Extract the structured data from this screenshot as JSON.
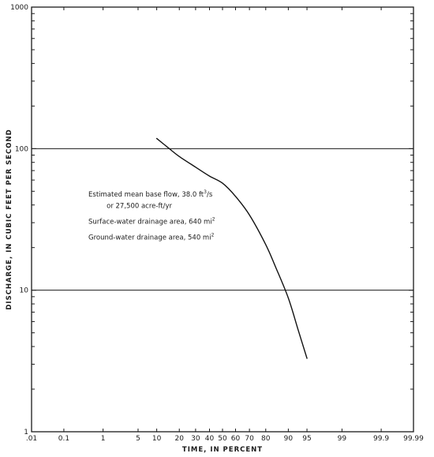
{
  "chart_data": {
    "type": "line",
    "xscale": "normal-probability",
    "yscale": "log",
    "xlabel": "TIME, IN PERCENT",
    "ylabel": "DISCHARGE, IN CUBIC FEET PER SECOND",
    "xlim": [
      0.01,
      99.99
    ],
    "ylim": [
      1,
      1000
    ],
    "x_ticks": [
      0.01,
      0.1,
      1,
      5,
      10,
      20,
      30,
      40,
      50,
      60,
      70,
      80,
      90,
      95,
      99,
      99.9,
      99.99
    ],
    "x_tick_labels": [
      ".01",
      "0.1",
      "1",
      "5",
      "10",
      "20",
      "30",
      "40",
      "50",
      "60",
      "70",
      "80",
      "90",
      "95",
      "99",
      "99.9",
      "99.99"
    ],
    "y_ticks": [
      1,
      10,
      100,
      1000
    ],
    "y_tick_labels": [
      "1",
      "10",
      "100",
      "1000"
    ],
    "grid": "major-horizontal",
    "series": [
      {
        "x": [
          10,
          15,
          20,
          30,
          40,
          50,
          60,
          70,
          80,
          85,
          90,
          93,
          95
        ],
        "y": [
          118,
          100,
          88,
          74,
          64,
          57,
          46,
          34,
          21,
          14.5,
          8.8,
          5.2,
          3.3
        ]
      }
    ],
    "annotations": [
      {
        "text": "Estimated mean base flow, 38.0 ft",
        "sup": "3",
        "tail": "/s",
        "data_x": 0.45,
        "data_y": 46
      },
      {
        "text": "or 27,500 acre-ft/yr",
        "sup": "",
        "tail": "",
        "data_x": 1.2,
        "data_y": 38
      },
      {
        "text": "Surface-water drainage area, 640 mi",
        "sup": "2",
        "tail": "",
        "data_x": 0.45,
        "data_y": 29.5
      },
      {
        "text": "Ground-water drainage area, 540 mi",
        "sup": "2",
        "tail": "",
        "data_x": 0.45,
        "data_y": 22.8
      }
    ]
  }
}
